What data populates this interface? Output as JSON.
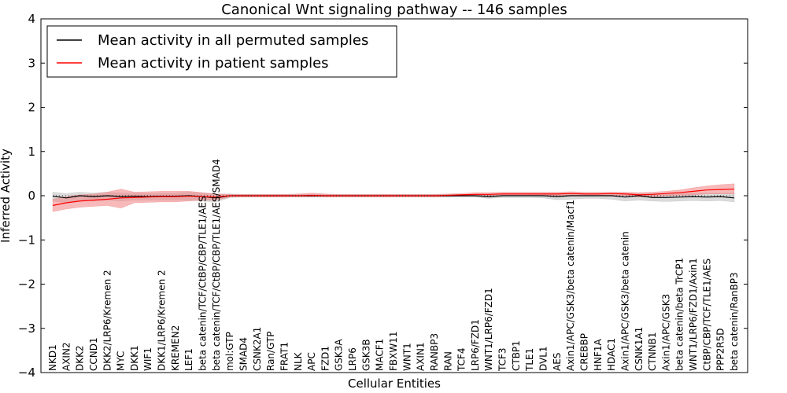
{
  "chart_data": {
    "type": "line",
    "title": "Canonical Wnt signaling pathway -- 146 samples",
    "xlabel": "Cellular Entities",
    "ylabel": "Inferred Activity",
    "ylim": [
      -4,
      4
    ],
    "yticks": [
      -4,
      -3,
      -2,
      -1,
      0,
      1,
      2,
      3,
      4
    ],
    "ytick_labels": [
      "−4",
      "−3",
      "−2",
      "−1",
      "0",
      "1",
      "2",
      "3",
      "4"
    ],
    "categories": [
      "NKD1",
      "AXIN2",
      "DKK2",
      "CCND1",
      "DKK2/LRP6/Kremen 2",
      "MYC",
      "DKK1",
      "WIF1",
      "DKK1/LRP6/Kremen 2",
      "KREMEN2",
      "LEF1",
      "beta catenin/TCF/CtBP/CBP/TLE1/AES",
      "beta catenin/TCF/CtBP/CBP/TLE1/AES/SMAD4",
      "mol:GTP",
      "SMAD4",
      "CSNK2A1",
      "Ran/GTP",
      "FRAT1",
      "NLK",
      "APC",
      "FZD1",
      "GSK3A",
      "LRP6",
      "GSK3B",
      "MACF1",
      "FBXW11",
      "WNT1",
      "AXIN1",
      "RANBP3",
      "RAN",
      "TCF4",
      "LRP6/FZD1",
      "WNT1/LRP6/FZD1",
      "TCF3",
      "CTBP1",
      "TLE1",
      "DVL1",
      "AES",
      "Axin1/APC/GSK3/beta catenin/Macf1",
      "CREBBP",
      "HNF1A",
      "HDAC1",
      "Axin1/APC/GSK3/beta catenin",
      "CSNK1A1",
      "CTNNB1",
      "Axin1/APC/GSK3",
      "beta catenin/beta TrCP1",
      "WNT1/LRP6/FZD1/Axin1",
      "CtBP/CBP/TCF/TLE1/AES",
      "PPP2R5D",
      "beta catenin/RanBP3"
    ],
    "legend_position": "upper-left",
    "series": [
      {
        "name": "Mean activity in all permuted samples",
        "color": "#000000",
        "band_color": "#b0b0b0",
        "values": [
          -0.01,
          -0.05,
          0.0,
          -0.02,
          0.0,
          -0.02,
          -0.01,
          -0.02,
          -0.01,
          -0.01,
          0.0,
          -0.02,
          -0.05,
          0.0,
          0.0,
          0.0,
          0.0,
          0.0,
          0.0,
          0.0,
          0.0,
          0.0,
          0.0,
          0.0,
          0.0,
          0.0,
          0.0,
          0.0,
          0.0,
          0.0,
          0.0,
          0.0,
          -0.02,
          0.0,
          0.0,
          0.0,
          0.0,
          -0.02,
          0.0,
          0.0,
          0.0,
          0.0,
          -0.03,
          0.0,
          -0.04,
          -0.04,
          -0.03,
          -0.02,
          -0.03,
          -0.02,
          -0.05
        ],
        "upper": [
          0.08,
          0.05,
          0.08,
          0.06,
          0.08,
          0.06,
          0.06,
          0.05,
          0.06,
          0.06,
          0.08,
          0.06,
          0.04,
          0.04,
          0.03,
          0.03,
          0.03,
          0.03,
          0.03,
          0.03,
          0.03,
          0.03,
          0.03,
          0.03,
          0.03,
          0.03,
          0.03,
          0.03,
          0.03,
          0.03,
          0.03,
          0.03,
          0.02,
          0.03,
          0.03,
          0.03,
          0.03,
          0.03,
          0.05,
          0.04,
          0.04,
          0.05,
          0.05,
          0.05,
          0.05,
          0.05,
          0.05,
          0.06,
          0.06,
          0.06,
          0.06
        ],
        "lower": [
          -0.12,
          -0.16,
          -0.1,
          -0.12,
          -0.1,
          -0.12,
          -0.1,
          -0.1,
          -0.1,
          -0.1,
          -0.1,
          -0.12,
          -0.14,
          -0.04,
          -0.03,
          -0.03,
          -0.03,
          -0.03,
          -0.03,
          -0.03,
          -0.03,
          -0.03,
          -0.03,
          -0.03,
          -0.03,
          -0.03,
          -0.03,
          -0.03,
          -0.03,
          -0.03,
          -0.03,
          -0.03,
          -0.06,
          -0.04,
          -0.04,
          -0.04,
          -0.05,
          -0.09,
          -0.08,
          -0.06,
          -0.06,
          -0.08,
          -0.12,
          -0.1,
          -0.12,
          -0.13,
          -0.12,
          -0.11,
          -0.12,
          -0.11,
          -0.14
        ]
      },
      {
        "name": "Mean activity in patient samples",
        "color": "#ff0000",
        "band_color": "#f08080",
        "values": [
          -0.22,
          -0.16,
          -0.12,
          -0.1,
          -0.08,
          -0.05,
          -0.04,
          -0.03,
          -0.02,
          -0.02,
          -0.01,
          -0.02,
          -0.03,
          0.0,
          0.0,
          0.0,
          0.0,
          0.0,
          0.0,
          0.01,
          0.0,
          0.0,
          0.0,
          0.0,
          0.0,
          0.0,
          0.0,
          0.0,
          0.0,
          0.01,
          0.02,
          0.03,
          0.03,
          0.04,
          0.04,
          0.04,
          0.04,
          0.04,
          0.05,
          0.04,
          0.04,
          0.05,
          0.04,
          0.02,
          0.03,
          0.05,
          0.07,
          0.1,
          0.13,
          0.14,
          0.15
        ],
        "upper": [
          -0.08,
          -0.02,
          0.02,
          0.04,
          0.08,
          0.15,
          0.08,
          0.09,
          0.1,
          0.1,
          0.1,
          0.07,
          0.04,
          0.03,
          0.03,
          0.03,
          0.03,
          0.03,
          0.04,
          0.06,
          0.04,
          0.03,
          0.03,
          0.03,
          0.03,
          0.03,
          0.03,
          0.03,
          0.03,
          0.04,
          0.05,
          0.07,
          0.07,
          0.08,
          0.08,
          0.08,
          0.08,
          0.08,
          0.09,
          0.08,
          0.08,
          0.08,
          0.08,
          0.07,
          0.08,
          0.1,
          0.13,
          0.18,
          0.22,
          0.25,
          0.27
        ],
        "lower": [
          -0.36,
          -0.3,
          -0.26,
          -0.24,
          -0.22,
          -0.28,
          -0.16,
          -0.15,
          -0.14,
          -0.14,
          -0.12,
          -0.1,
          -0.1,
          -0.03,
          -0.03,
          -0.03,
          -0.03,
          -0.03,
          -0.03,
          -0.03,
          -0.03,
          -0.03,
          -0.03,
          -0.03,
          -0.03,
          -0.03,
          -0.03,
          -0.03,
          -0.03,
          -0.02,
          -0.01,
          -0.01,
          -0.01,
          0.0,
          0.0,
          0.0,
          0.0,
          0.0,
          0.01,
          0.0,
          0.0,
          0.01,
          0.0,
          -0.03,
          -0.02,
          0.0,
          0.01,
          0.02,
          0.04,
          0.04,
          0.04
        ]
      }
    ]
  }
}
